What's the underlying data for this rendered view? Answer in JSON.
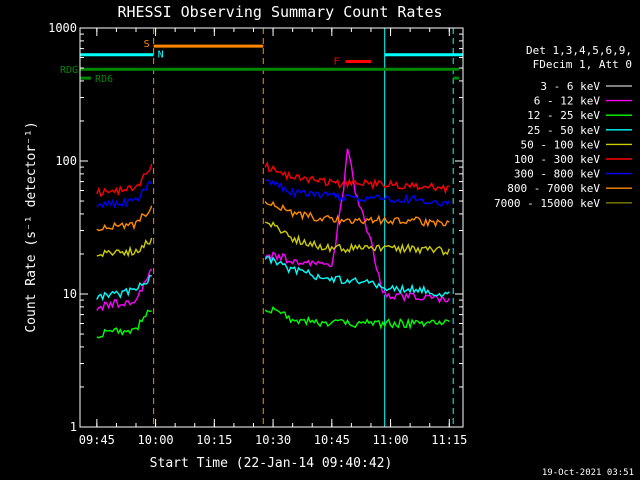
{
  "chart_data": {
    "type": "line",
    "title": "RHESSI Observing Summary Count Rates",
    "xlabel": "Start Time (22-Jan-14 09:40:42)",
    "ylabel": "Count Rate (s⁻¹ detector⁻¹)",
    "y_scale": "log",
    "ylim": [
      1,
      1000
    ],
    "xlim": [
      "09:40:42",
      "11:18:30"
    ],
    "x_ticks": [
      "09:45",
      "10:00",
      "10:15",
      "10:30",
      "10:45",
      "11:00",
      "11:15"
    ],
    "y_ticks": [
      "1",
      "10",
      "100",
      "1000"
    ],
    "grid": false,
    "legend_position": "right",
    "legend_header": [
      "Det 1,3,4,5,6,9,",
      "FDecim 1, Att 0"
    ],
    "series": [
      {
        "name": "3 - 6 keV",
        "color": "#000000",
        "points": [
          [
            "09:45",
            7.5
          ],
          [
            "09:55",
            8.5
          ],
          [
            "09:59",
            14
          ],
          [
            "10:28",
            22
          ],
          [
            "10:35",
            18
          ],
          [
            "10:45",
            16
          ],
          [
            "10:50",
            14
          ],
          [
            "10:57",
            10
          ],
          [
            "11:05",
            9.5
          ],
          [
            "11:15",
            9
          ]
        ]
      },
      {
        "name": "6 - 12 keV",
        "color": "#ff00ff",
        "points": [
          [
            "09:45",
            8
          ],
          [
            "09:55",
            9
          ],
          [
            "09:59",
            15
          ],
          [
            "10:28",
            20
          ],
          [
            "10:35",
            18
          ],
          [
            "10:45",
            16
          ],
          [
            "10:48",
            60
          ],
          [
            "10:49",
            130
          ],
          [
            "10:51",
            60
          ],
          [
            "10:55",
            25
          ],
          [
            "10:58",
            10
          ],
          [
            "11:05",
            9.5
          ],
          [
            "11:15",
            9
          ]
        ]
      },
      {
        "name": "12 - 25 keV",
        "color": "#00ff00",
        "points": [
          [
            "09:45",
            5
          ],
          [
            "09:55",
            5.5
          ],
          [
            "09:59",
            8
          ],
          [
            "10:28",
            8
          ],
          [
            "10:35",
            6.5
          ],
          [
            "10:45",
            6
          ],
          [
            "10:55",
            6
          ],
          [
            "11:05",
            6
          ],
          [
            "11:15",
            6
          ]
        ]
      },
      {
        "name": "25 - 50 keV",
        "color": "#00ffff",
        "points": [
          [
            "09:45",
            9.5
          ],
          [
            "09:55",
            10.5
          ],
          [
            "09:59",
            14
          ],
          [
            "10:28",
            19
          ],
          [
            "10:35",
            15
          ],
          [
            "10:45",
            13
          ],
          [
            "10:55",
            12
          ],
          [
            "10:58",
            11
          ],
          [
            "11:05",
            11
          ],
          [
            "11:15",
            10
          ]
        ]
      },
      {
        "name": "50 - 100 keV",
        "color": "#cccc00",
        "points": [
          [
            "09:45",
            20
          ],
          [
            "09:55",
            21
          ],
          [
            "09:59",
            26
          ],
          [
            "10:28",
            36
          ],
          [
            "10:35",
            26
          ],
          [
            "10:45",
            22
          ],
          [
            "10:55",
            22
          ],
          [
            "11:05",
            22
          ],
          [
            "11:15",
            21
          ]
        ]
      },
      {
        "name": "100 - 300 keV",
        "color": "#ff0000",
        "points": [
          [
            "09:45",
            58
          ],
          [
            "09:55",
            62
          ],
          [
            "09:59",
            90
          ],
          [
            "10:28",
            92
          ],
          [
            "10:35",
            75
          ],
          [
            "10:45",
            68
          ],
          [
            "10:55",
            67
          ],
          [
            "11:05",
            66
          ],
          [
            "11:15",
            62
          ]
        ]
      },
      {
        "name": "300 - 800 keV",
        "color": "#0000ff",
        "points": [
          [
            "09:45",
            46
          ],
          [
            "09:55",
            50
          ],
          [
            "09:59",
            70
          ],
          [
            "10:28",
            72
          ],
          [
            "10:35",
            58
          ],
          [
            "10:45",
            54
          ],
          [
            "10:55",
            52
          ],
          [
            "11:05",
            52
          ],
          [
            "11:15",
            48
          ]
        ]
      },
      {
        "name": "800 - 7000 keV",
        "color": "#ff8800",
        "points": [
          [
            "09:45",
            31
          ],
          [
            "09:55",
            33
          ],
          [
            "09:59",
            46
          ],
          [
            "10:28",
            50
          ],
          [
            "10:35",
            40
          ],
          [
            "10:45",
            36
          ],
          [
            "10:55",
            36
          ],
          [
            "11:05",
            36
          ],
          [
            "11:15",
            33
          ]
        ]
      },
      {
        "name": "7000 - 15000 keV",
        "color": "#808000",
        "points": []
      }
    ],
    "flag_bars": [
      {
        "label": "S",
        "color": "#ff8800",
        "start": "09:59:30",
        "end": "10:27:30",
        "level": 730
      },
      {
        "label": "N",
        "color": "#00ffff",
        "start": "09:40:42",
        "end": "09:59:30",
        "level": 630
      },
      {
        "label": "",
        "color": "#00ffff",
        "start": "10:58:30",
        "end": "11:18:30",
        "level": 630
      },
      {
        "label": "F",
        "color": "#ff0000",
        "start": "10:48:30",
        "end": "10:55:00",
        "level": 560
      },
      {
        "label": "RDG",
        "color": "#008800",
        "start": "09:40:42",
        "end": "11:17:30",
        "level": 490
      },
      {
        "label": "RD6",
        "color": "#008800",
        "start": "09:40:42",
        "end": "09:43:30",
        "level": 420
      },
      {
        "label": "",
        "color": "#008800",
        "start": "11:16:00",
        "end": "11:17:30",
        "level": 420
      }
    ],
    "vertical_markers": [
      {
        "time": "09:40:42",
        "color": "#00ffff",
        "style": "solid"
      },
      {
        "time": "09:59:30",
        "color": "#ff8800",
        "style": "dashed"
      },
      {
        "time": "10:27:30",
        "color": "#ff8800",
        "style": "dashed"
      },
      {
        "time": "10:58:30",
        "color": "#00ffff",
        "style": "solid"
      },
      {
        "time": "11:16:00",
        "color": "#00ffff",
        "style": "dashed"
      }
    ]
  },
  "footer": {
    "date": "19-Oct-2021 03:51"
  }
}
